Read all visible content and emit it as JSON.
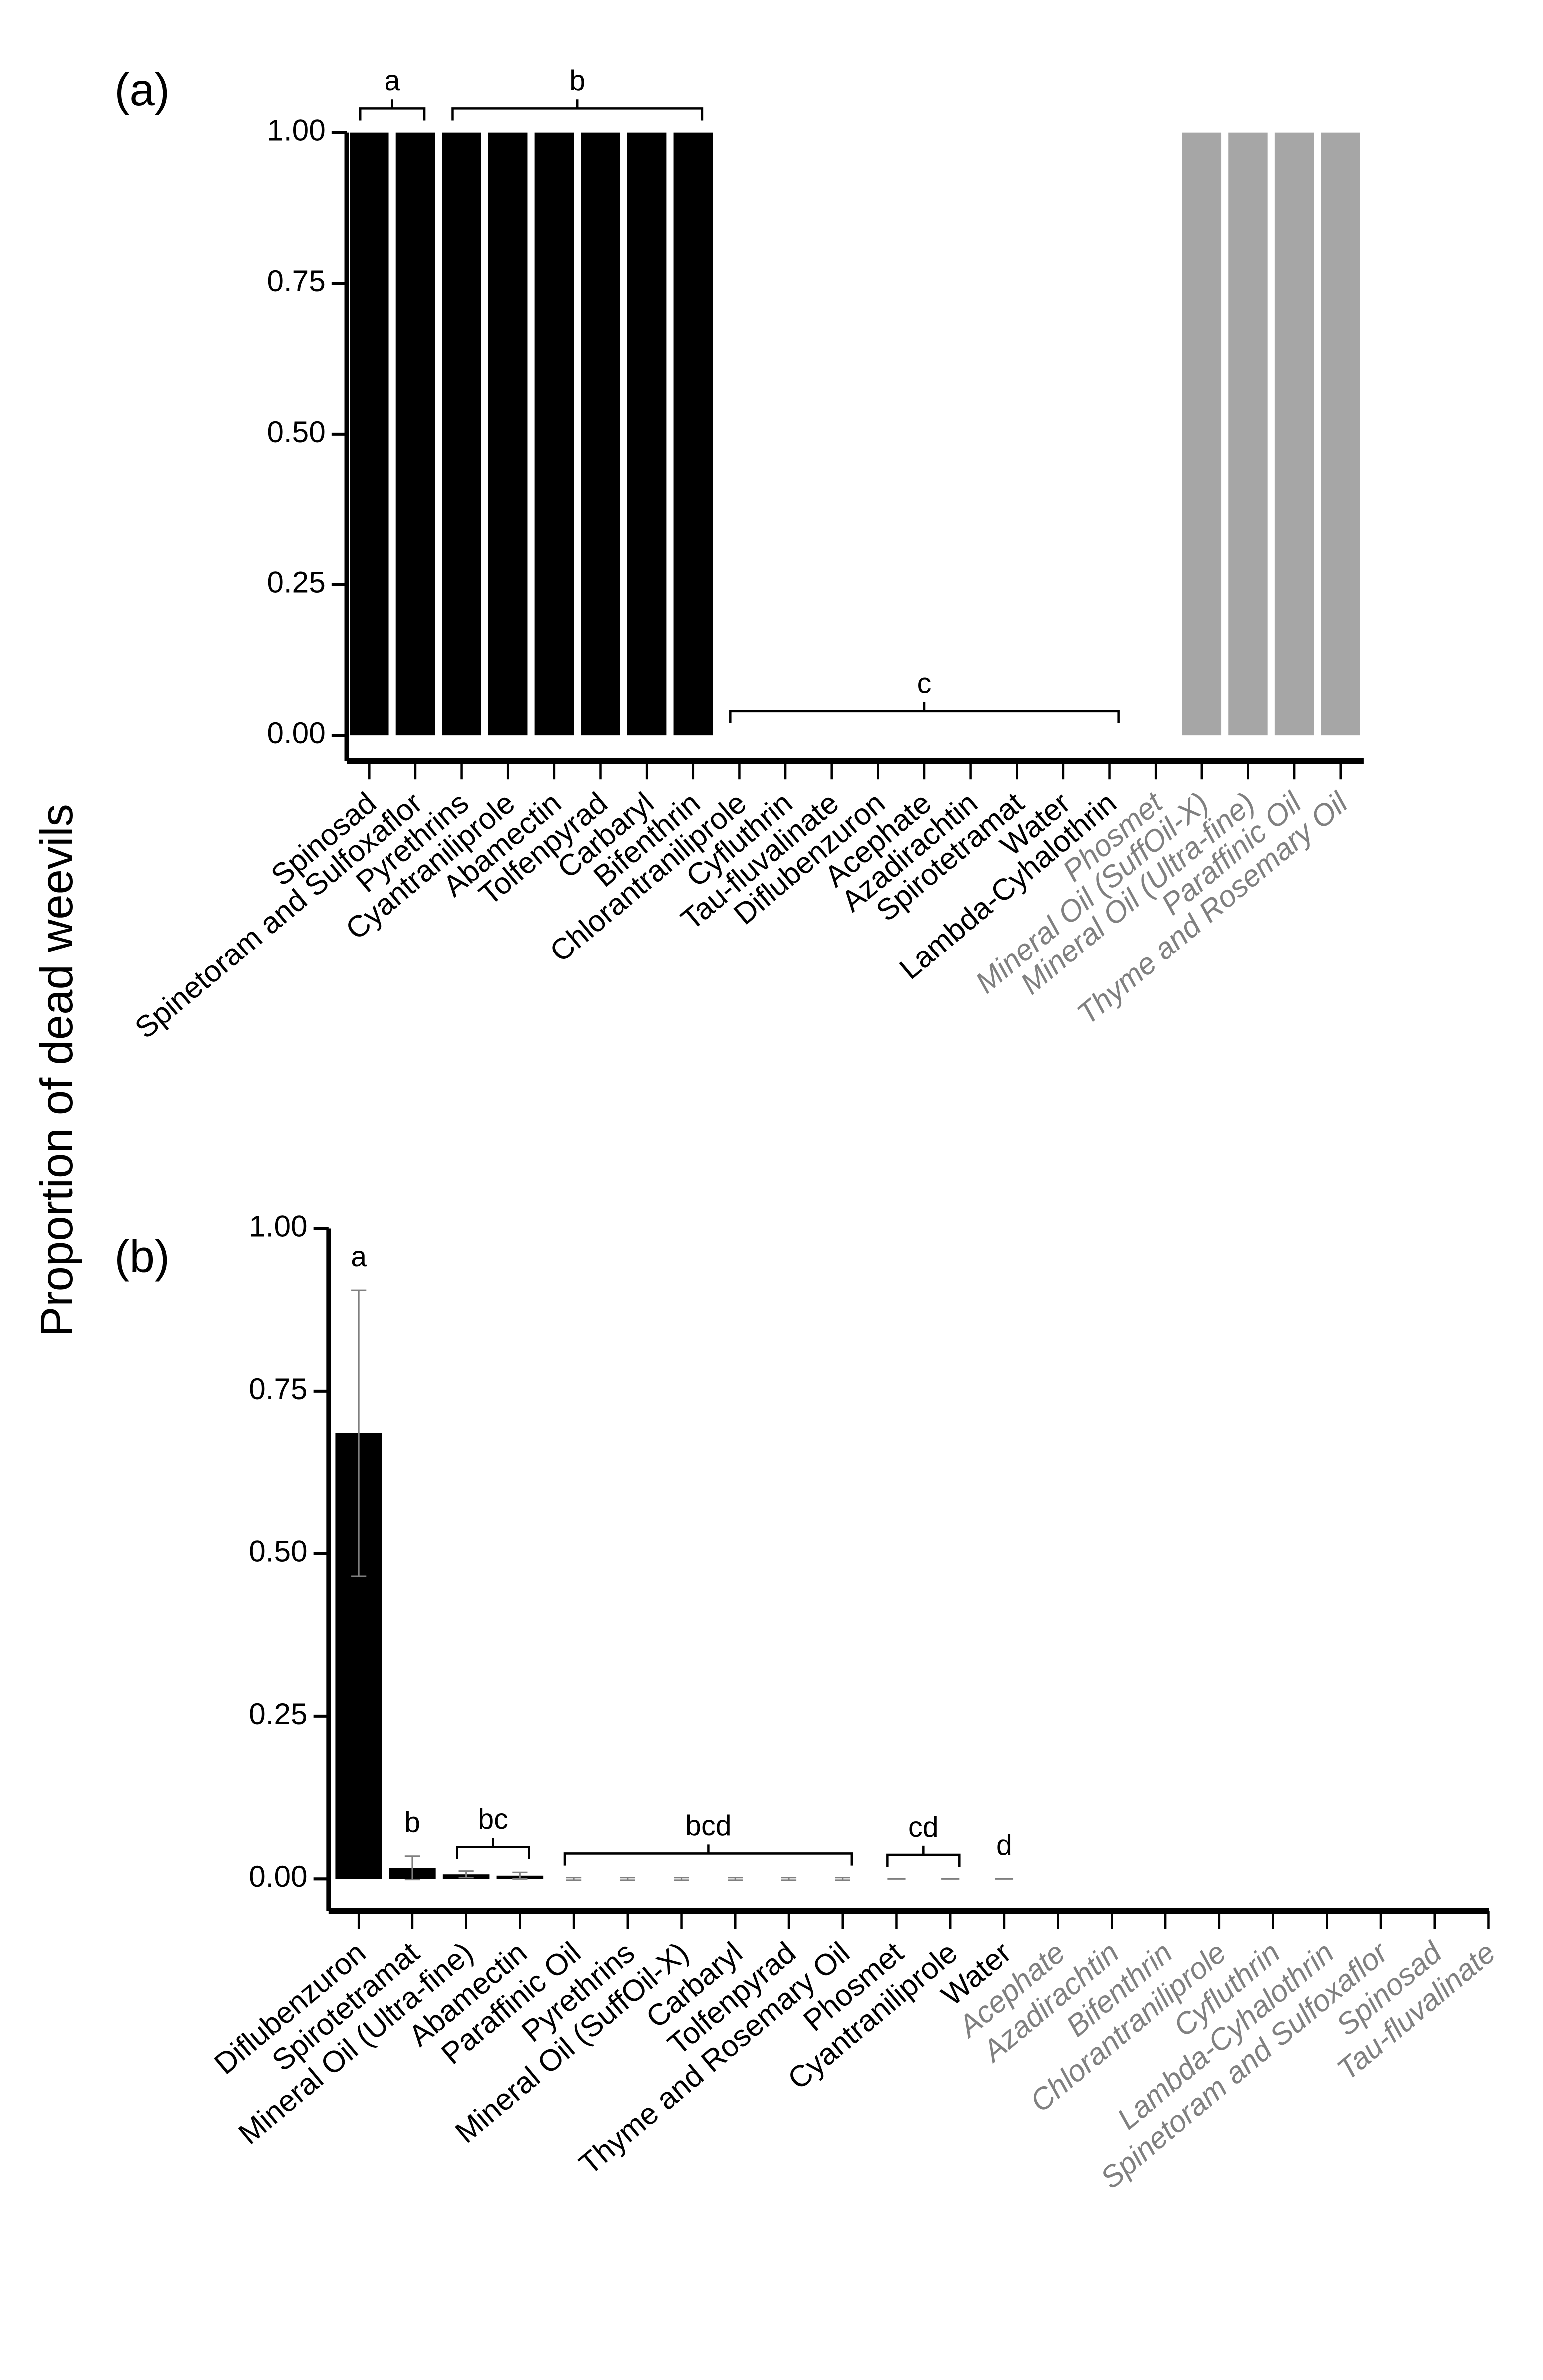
{
  "ylabel": "Proportion of dead weevils",
  "chart_data": [
    {
      "type": "bar",
      "panel_label": "(a)",
      "categories": [
        "Spinosad",
        "Spinetoram and Sulfoxaflor",
        "Pyrethrins",
        "Cyantraniliprole",
        "Abamectin",
        "Tolfenpyrad",
        "Carbaryl",
        "Bifenthrin",
        "Chlorantraniliprole",
        "Cyfluthrin",
        "Tau-fluvalinate",
        "Diflubenzuron",
        "Acephate",
        "Azadirachtin",
        "Spirotetramat",
        "Water",
        "Lambda-Cyhalothrin",
        "Phosmet",
        "Mineral Oil (SuffOil-X)",
        "Mineral Oil (Ultra-fine)",
        "Paraffinic Oil",
        "Thyme and Rosemary Oil"
      ],
      "values": [
        1,
        1,
        1,
        1,
        1,
        1,
        1,
        1,
        0,
        0,
        0,
        0,
        0,
        0,
        0,
        0,
        0,
        null,
        1,
        1,
        1,
        1
      ],
      "colors": [
        "#000000",
        "#000000",
        "#000000",
        "#000000",
        "#000000",
        "#000000",
        "#000000",
        "#000000",
        "#000000",
        "#000000",
        "#000000",
        "#000000",
        "#000000",
        "#000000",
        "#000000",
        "#000000",
        "#000000",
        "#a6a6a6",
        "#a6a6a6",
        "#a6a6a6",
        "#a6a6a6",
        "#a6a6a6"
      ],
      "label_colors": [
        "#000000",
        "#000000",
        "#000000",
        "#000000",
        "#000000",
        "#000000",
        "#000000",
        "#000000",
        "#000000",
        "#000000",
        "#000000",
        "#000000",
        "#000000",
        "#000000",
        "#000000",
        "#000000",
        "#000000",
        "#808080",
        "#808080",
        "#808080",
        "#808080",
        "#808080"
      ],
      "label_italic": [
        false,
        false,
        false,
        false,
        false,
        false,
        false,
        false,
        false,
        false,
        false,
        false,
        false,
        false,
        false,
        false,
        false,
        true,
        true,
        true,
        true,
        true
      ],
      "groups": [
        {
          "text": "a",
          "from": 0,
          "to": 1
        },
        {
          "text": "b",
          "from": 2,
          "to": 7
        },
        {
          "text": "c",
          "from": 8,
          "to": 16
        }
      ],
      "ylim": [
        -0.043,
        1
      ],
      "yticks": [
        {
          "value": 0,
          "label": "0.00"
        },
        {
          "value": 0.25,
          "label": "0.25"
        },
        {
          "value": 0.5,
          "label": "0.50"
        },
        {
          "value": 0.75,
          "label": "0.75"
        },
        {
          "value": 1,
          "label": "1.00"
        }
      ]
    },
    {
      "type": "bar",
      "panel_label": "(b)",
      "categories": [
        "Diflubenzuron",
        "Spirotetramat",
        "Mineral Oil (Ultra-fine)",
        "Abamectin",
        "Paraffinic Oil",
        "Pyrethrins",
        "Mineral Oil (SuffOil-X)",
        "Carbaryl",
        "Tolfenpyrad",
        "Thyme and Rosemary Oil",
        "Phosmet",
        "Cyantraniliprole",
        "Water",
        "Acephate",
        "Azadirachtin",
        "Bifenthrin",
        "Chlorantraniliprole",
        "Cyfluthrin",
        "Lambda-Cyhalothrin",
        "Spinetoram and Sulfoxaflor",
        "Spinosad",
        "Tau-fluvalinate"
      ],
      "values": [
        0.685,
        0.017,
        0.007,
        0.005,
        0,
        0,
        0,
        0,
        0,
        0,
        0,
        0,
        0,
        null,
        null,
        null,
        null,
        null,
        null,
        null,
        null,
        null
      ],
      "errors": [
        0.22,
        0.018,
        0.005,
        0.005,
        0.002,
        0.002,
        0.002,
        0.002,
        0.002,
        0.002,
        0,
        0,
        0,
        null,
        null,
        null,
        null,
        null,
        null,
        null,
        null,
        null
      ],
      "colors": [
        "#000000",
        "#000000",
        "#000000",
        "#000000",
        "#000000",
        "#000000",
        "#000000",
        "#000000",
        "#000000",
        "#000000",
        "#000000",
        "#000000",
        "#000000",
        "#a6a6a6",
        "#a6a6a6",
        "#a6a6a6",
        "#a6a6a6",
        "#a6a6a6",
        "#a6a6a6",
        "#a6a6a6",
        "#a6a6a6",
        "#a6a6a6"
      ],
      "label_colors": [
        "#000000",
        "#000000",
        "#000000",
        "#000000",
        "#000000",
        "#000000",
        "#000000",
        "#000000",
        "#000000",
        "#000000",
        "#000000",
        "#000000",
        "#000000",
        "#808080",
        "#808080",
        "#808080",
        "#808080",
        "#808080",
        "#808080",
        "#808080",
        "#808080",
        "#808080"
      ],
      "label_italic": [
        false,
        false,
        false,
        false,
        false,
        false,
        false,
        false,
        false,
        false,
        false,
        false,
        false,
        true,
        true,
        true,
        true,
        true,
        true,
        true,
        true,
        true
      ],
      "groups": [
        {
          "text": "a",
          "from": 0,
          "to": 0
        },
        {
          "text": "b",
          "from": 1,
          "to": 1
        },
        {
          "text": "bc",
          "from": 2,
          "to": 3
        },
        {
          "text": "bcd",
          "from": 4,
          "to": 9
        },
        {
          "text": "cd",
          "from": 10,
          "to": 11
        },
        {
          "text": "d",
          "from": 12,
          "to": 12
        }
      ],
      "ylim": [
        -0.05,
        1
      ],
      "yticks": [
        {
          "value": 0,
          "label": "0.00"
        },
        {
          "value": 0.25,
          "label": "0.25"
        },
        {
          "value": 0.5,
          "label": "0.50"
        },
        {
          "value": 0.75,
          "label": "0.75"
        },
        {
          "value": 1,
          "label": "1.00"
        }
      ]
    }
  ]
}
